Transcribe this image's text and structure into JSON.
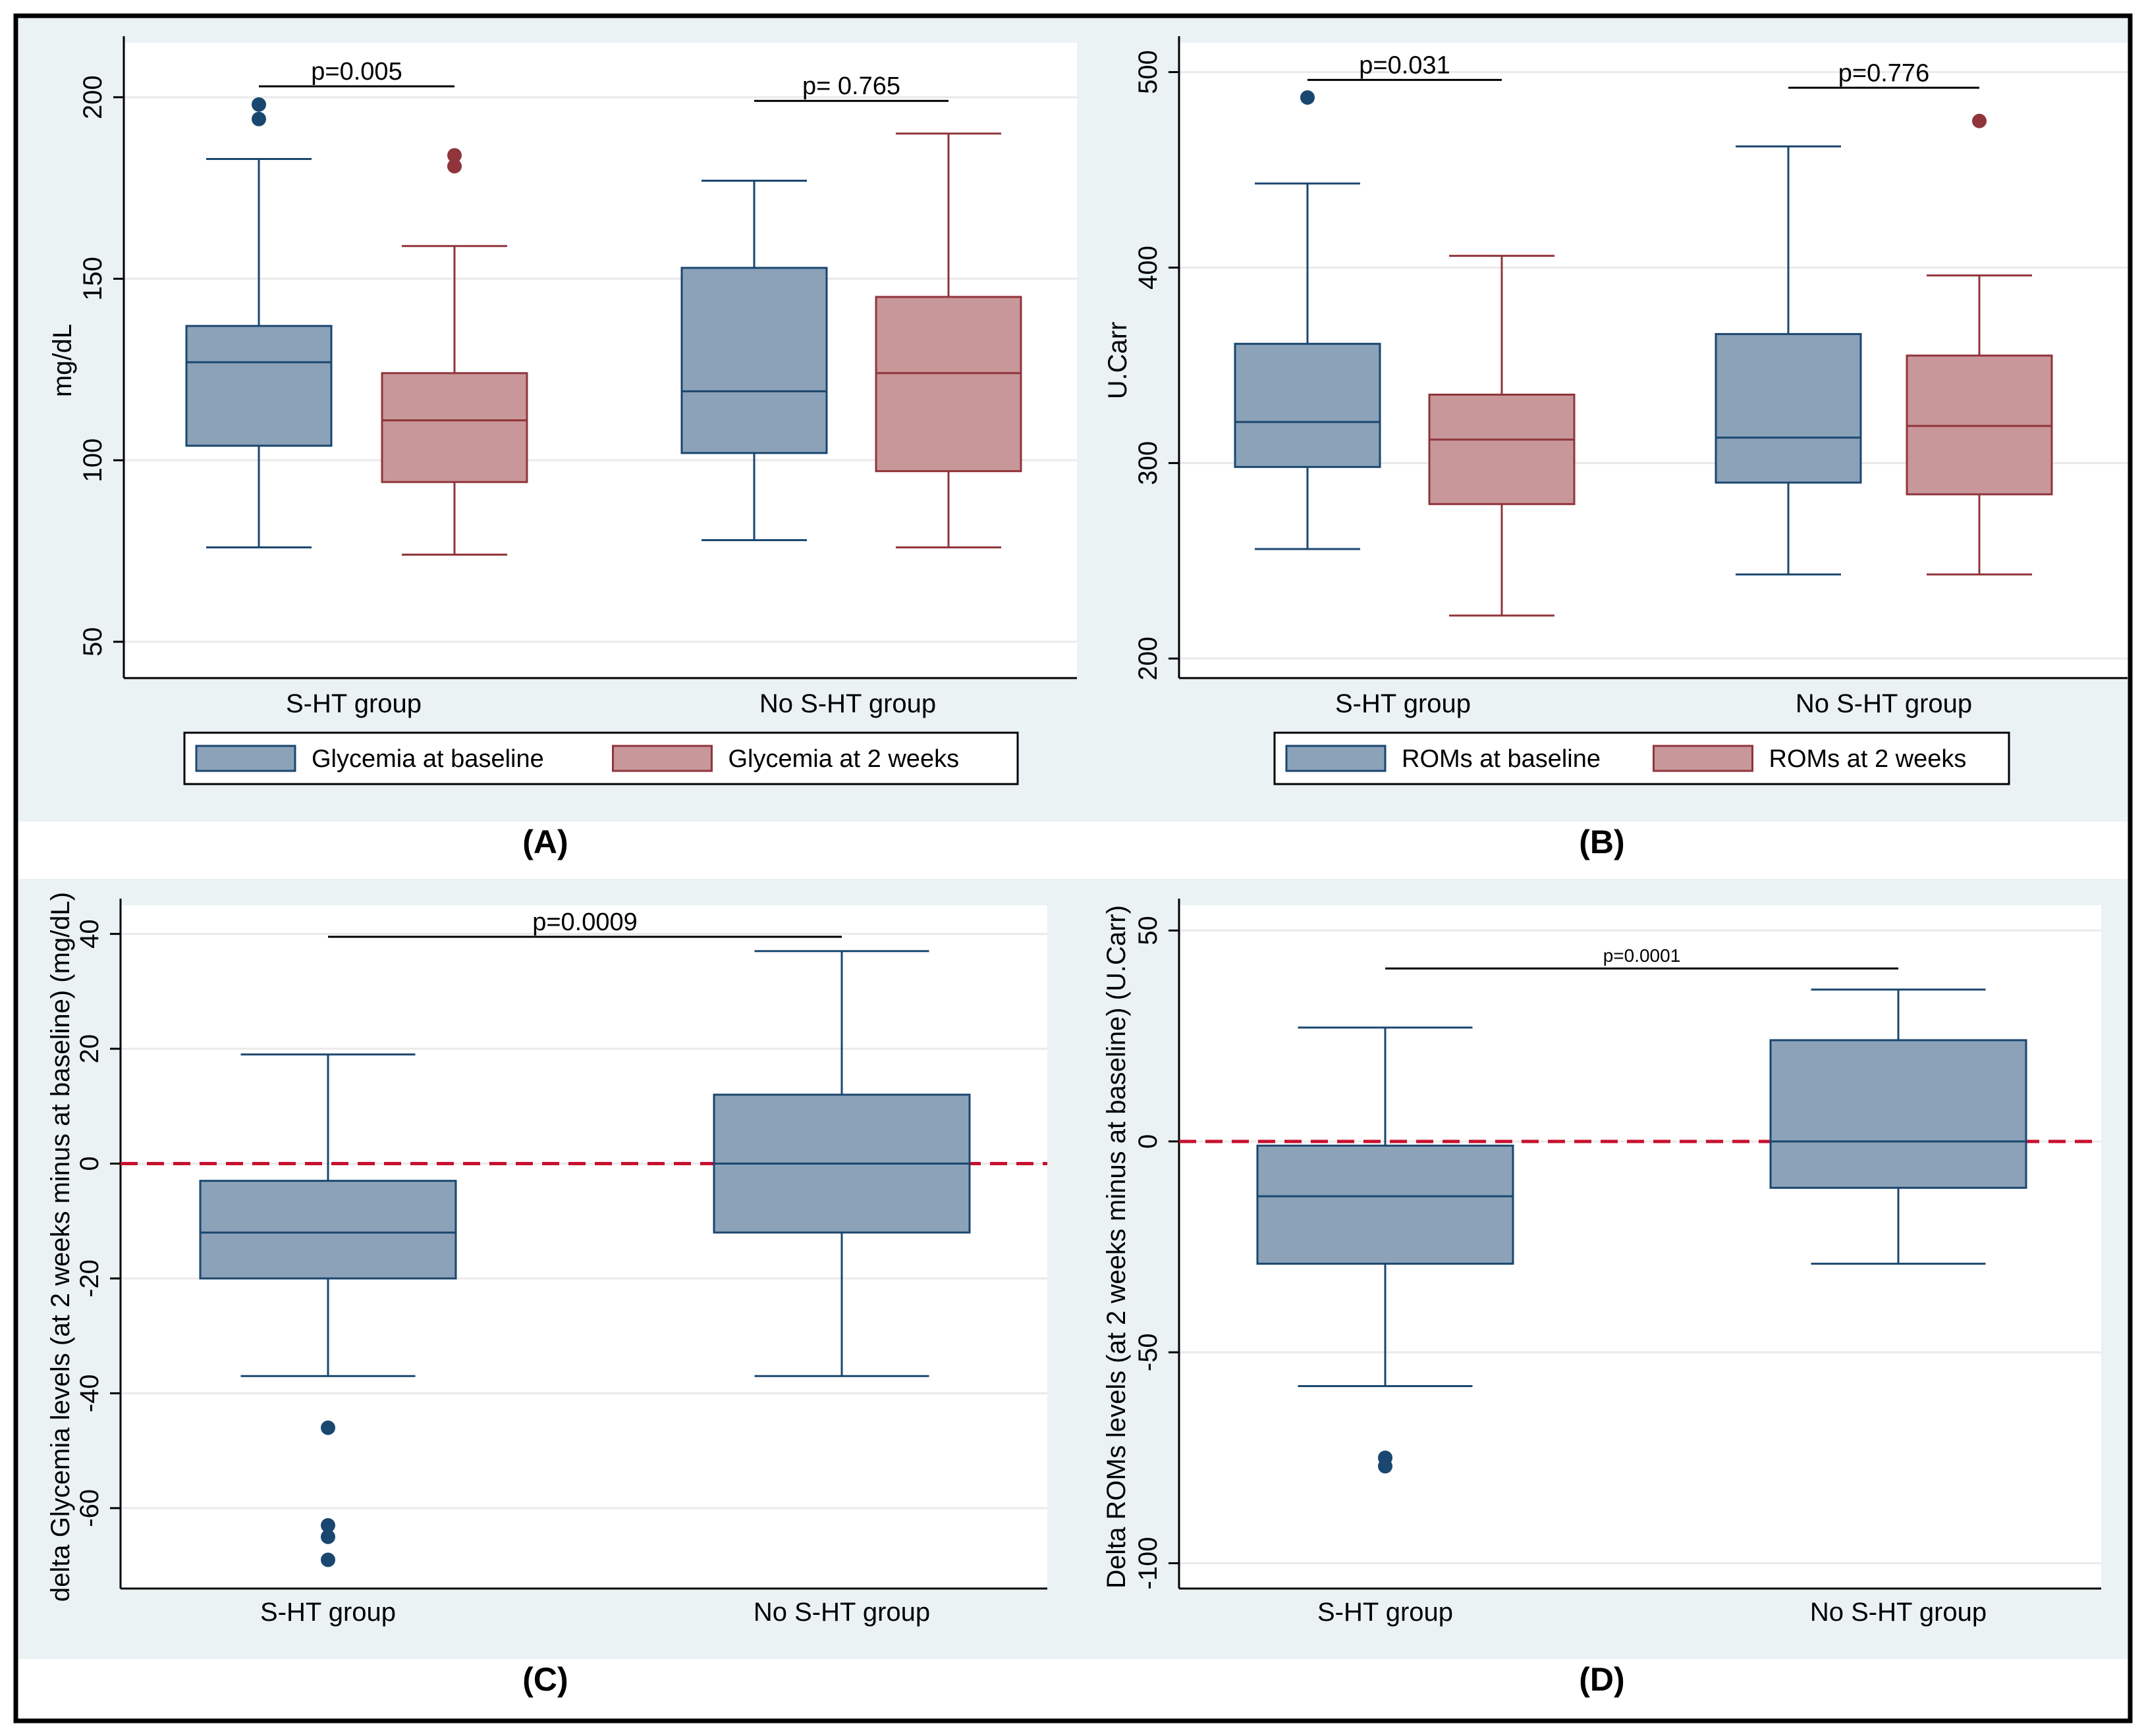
{
  "colors": {
    "panel_bg": "#eaf2f3",
    "plot_bg": "#ffffff",
    "grid": "#eaeaea",
    "axis": "#000000",
    "blue_fill": "#8ca2b8",
    "blue_line": "#1a476f",
    "red_fill": "#c8979a",
    "red_line": "#90353b",
    "ref_line": "#c8102e"
  },
  "captions": [
    "(A)",
    "(B)",
    "(C)",
    "(D)"
  ],
  "chart_data": [
    {
      "id": "A",
      "type": "boxplot",
      "ylabel": "mg/dL",
      "ylim": [
        40,
        215
      ],
      "yticks": [
        50,
        100,
        150,
        200
      ],
      "groups": [
        "S-HT group",
        "No S-HT group"
      ],
      "series": [
        {
          "name": "Glycemia at baseline",
          "color": "blue",
          "boxes": [
            {
              "min": 76,
              "q1": 104,
              "median": 127,
              "q3": 137,
              "max": 183,
              "outliers": [
                194,
                198
              ]
            },
            {
              "min": 78,
              "q1": 102,
              "median": 119,
              "q3": 153,
              "max": 177,
              "outliers": []
            }
          ]
        },
        {
          "name": "Glycemia at 2 weeks",
          "color": "red",
          "boxes": [
            {
              "min": 74,
              "q1": 94,
              "median": 111,
              "q3": 124,
              "max": 159,
              "outliers": [
                181,
                184
              ]
            },
            {
              "min": 76,
              "q1": 97,
              "median": 124,
              "q3": 145,
              "max": 190,
              "outliers": []
            }
          ]
        }
      ],
      "legend": [
        "Glycemia at baseline",
        "Glycemia at 2 weeks"
      ],
      "annotations": [
        {
          "text": "p=0.005",
          "x_from": [
            0,
            0
          ],
          "x_to": [
            0,
            1
          ],
          "y": 203
        },
        {
          "text": "p= 0.765",
          "x_from": [
            1,
            0
          ],
          "x_to": [
            1,
            1
          ],
          "y": 199
        }
      ]
    },
    {
      "id": "B",
      "type": "boxplot",
      "ylabel": "U.Carr",
      "ylim": [
        190,
        515
      ],
      "yticks": [
        200,
        300,
        400,
        500
      ],
      "groups": [
        "S-HT group",
        "No S-HT group"
      ],
      "series": [
        {
          "name": "ROMs at baseline",
          "color": "blue",
          "boxes": [
            {
              "min": 256,
              "q1": 298,
              "median": 321,
              "q3": 361,
              "max": 443,
              "outliers": [
                487
              ]
            },
            {
              "min": 243,
              "q1": 290,
              "median": 313,
              "q3": 366,
              "max": 462,
              "outliers": []
            }
          ]
        },
        {
          "name": "ROMs at 2 weeks",
          "color": "red",
          "boxes": [
            {
              "min": 222,
              "q1": 279,
              "median": 312,
              "q3": 335,
              "max": 406,
              "outliers": []
            },
            {
              "min": 243,
              "q1": 284,
              "median": 319,
              "q3": 355,
              "max": 396,
              "outliers": [
                475
              ]
            }
          ]
        }
      ],
      "legend": [
        "ROMs at baseline",
        "ROMs at 2 weeks"
      ],
      "annotations": [
        {
          "text": "p=0.031",
          "x_from": [
            0,
            0
          ],
          "x_to": [
            0,
            1
          ],
          "y": 496
        },
        {
          "text": "p=0.776",
          "x_from": [
            1,
            0
          ],
          "x_to": [
            1,
            1
          ],
          "y": 492
        }
      ]
    },
    {
      "id": "C",
      "type": "boxplot",
      "ylabel": "delta Glycemia levels (at 2 weeks minus at baseline) (mg/dL)",
      "ylim": [
        -74,
        45
      ],
      "yticks": [
        -60,
        -40,
        -20,
        0,
        20,
        40
      ],
      "ref_line": 0,
      "groups": [
        "S-HT group",
        "No S-HT group"
      ],
      "series": [
        {
          "name": "delta Glycemia",
          "color": "blue",
          "boxes": [
            {
              "min": -37,
              "q1": -20,
              "median": -12,
              "q3": -3,
              "max": 19,
              "outliers": [
                -46,
                -63,
                -65,
                -69
              ]
            },
            {
              "min": -37,
              "q1": -12,
              "median": 0,
              "q3": 12,
              "max": 37,
              "outliers": []
            }
          ]
        }
      ],
      "annotations": [
        {
          "text": "p=0.0009",
          "x_from": [
            0,
            0
          ],
          "x_to": [
            1,
            0
          ],
          "y": 39.5
        }
      ]
    },
    {
      "id": "D",
      "type": "boxplot",
      "ylabel": "Delta ROMs levels (at 2 weeks minus at baseline) (U.Carr)",
      "ylim": [
        -106,
        56
      ],
      "yticks": [
        -100,
        -50,
        0,
        50
      ],
      "ref_line": 0,
      "groups": [
        "S-HT group",
        "No S-HT group"
      ],
      "series": [
        {
          "name": "delta ROMs",
          "color": "blue",
          "boxes": [
            {
              "min": -58,
              "q1": -29,
              "median": -13,
              "q3": -1,
              "max": 27,
              "outliers": [
                -75,
                -77
              ]
            },
            {
              "min": -29,
              "q1": -11,
              "median": 0,
              "q3": 24,
              "max": 36,
              "outliers": []
            }
          ]
        }
      ],
      "annotations": [
        {
          "text": "p=0.0001",
          "x_from": [
            0,
            0
          ],
          "x_to": [
            1,
            0
          ],
          "y": 41
        }
      ]
    }
  ]
}
